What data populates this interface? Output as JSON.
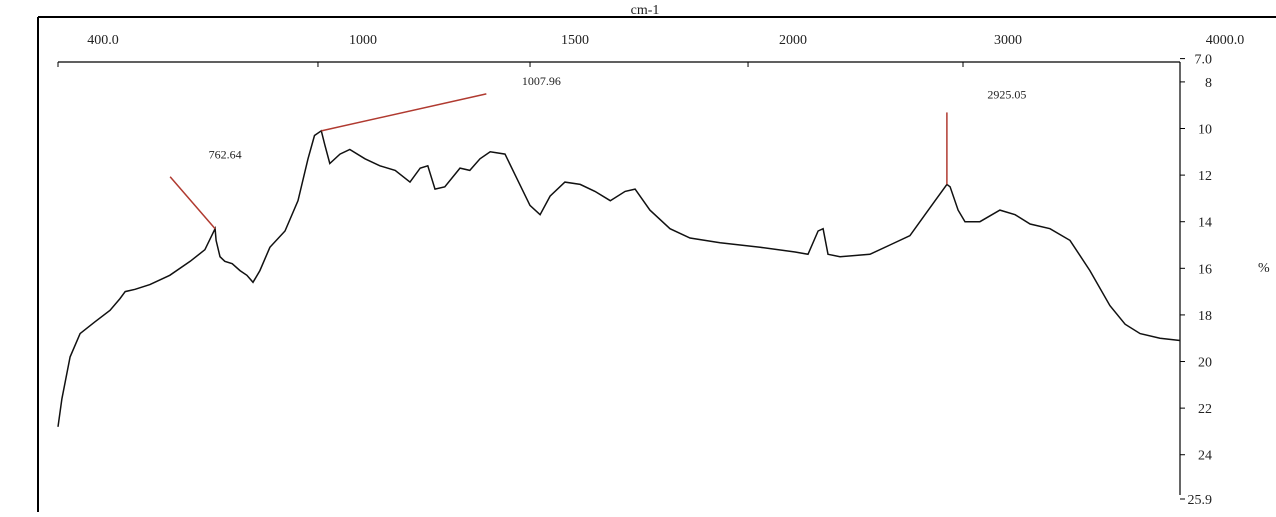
{
  "chart_data": {
    "type": "line",
    "x_label": "cm-1",
    "y_label": "%",
    "x": [
      400,
      409,
      428,
      451,
      485,
      520,
      543,
      555,
      578,
      612,
      658,
      705,
      739,
      762.64,
      765,
      774,
      785,
      802,
      820,
      836,
      850,
      866,
      889,
      924,
      954,
      977,
      992,
      1007.96,
      1016,
      1028,
      1052,
      1075,
      1111,
      1146,
      1182,
      1217,
      1241,
      1259,
      1276,
      1299,
      1335,
      1358,
      1382,
      1406,
      1441,
      1465,
      1500,
      1523,
      1546,
      1580,
      1615,
      1649,
      1684,
      1718,
      1741,
      1775,
      1821,
      1867,
      1936,
      2056,
      2219,
      2279,
      2326,
      2349,
      2372,
      2428,
      2567,
      2660,
      2753,
      2823,
      2870,
      2925.05,
      2940,
      2977,
      3009,
      3078,
      3170,
      3240,
      3309,
      3401,
      3493,
      3585,
      3677,
      3747,
      3816,
      3908,
      4000
    ],
    "series": [
      {
        "color": "#111111",
        "values": [
          22.8,
          21.6,
          19.8,
          18.8,
          18.3,
          17.8,
          17.3,
          17.0,
          16.9,
          16.7,
          16.3,
          15.7,
          15.2,
          14.3,
          14.8,
          15.5,
          15.7,
          15.8,
          16.1,
          16.3,
          16.6,
          16.1,
          15.1,
          14.4,
          13.1,
          11.3,
          10.3,
          10.1,
          10.7,
          11.5,
          11.1,
          10.9,
          11.3,
          11.6,
          11.8,
          12.3,
          11.7,
          11.6,
          12.6,
          12.5,
          11.7,
          11.8,
          11.3,
          11.0,
          11.1,
          12.0,
          13.3,
          13.7,
          12.9,
          12.3,
          12.4,
          12.7,
          13.1,
          12.7,
          12.6,
          13.5,
          14.3,
          14.7,
          14.9,
          15.1,
          15.3,
          15.4,
          14.4,
          14.3,
          15.4,
          15.5,
          15.4,
          15.0,
          14.6,
          13.7,
          13.1,
          12.4,
          12.5,
          13.5,
          14.0,
          14.0,
          13.5,
          13.7,
          14.1,
          14.3,
          14.8,
          16.1,
          17.6,
          18.4,
          18.8,
          19.0,
          19.1
        ]
      }
    ],
    "xlim": [
      400,
      4000
    ],
    "xticks": [
      {
        "value": 400,
        "label": "400.0"
      },
      1000,
      1500,
      2000,
      3000,
      {
        "value": 4000,
        "label": "4000.0"
      }
    ],
    "ylim": [
      7,
      25.9
    ],
    "yticks": [
      {
        "value": 7,
        "label": "7.0"
      },
      8,
      10,
      12,
      14,
      16,
      18,
      20,
      22,
      24,
      25.9
    ],
    "y_inverted": true,
    "annotations": [
      762.64,
      1007.96,
      2925.05
    ],
    "annotation_color": "#b03a30"
  }
}
